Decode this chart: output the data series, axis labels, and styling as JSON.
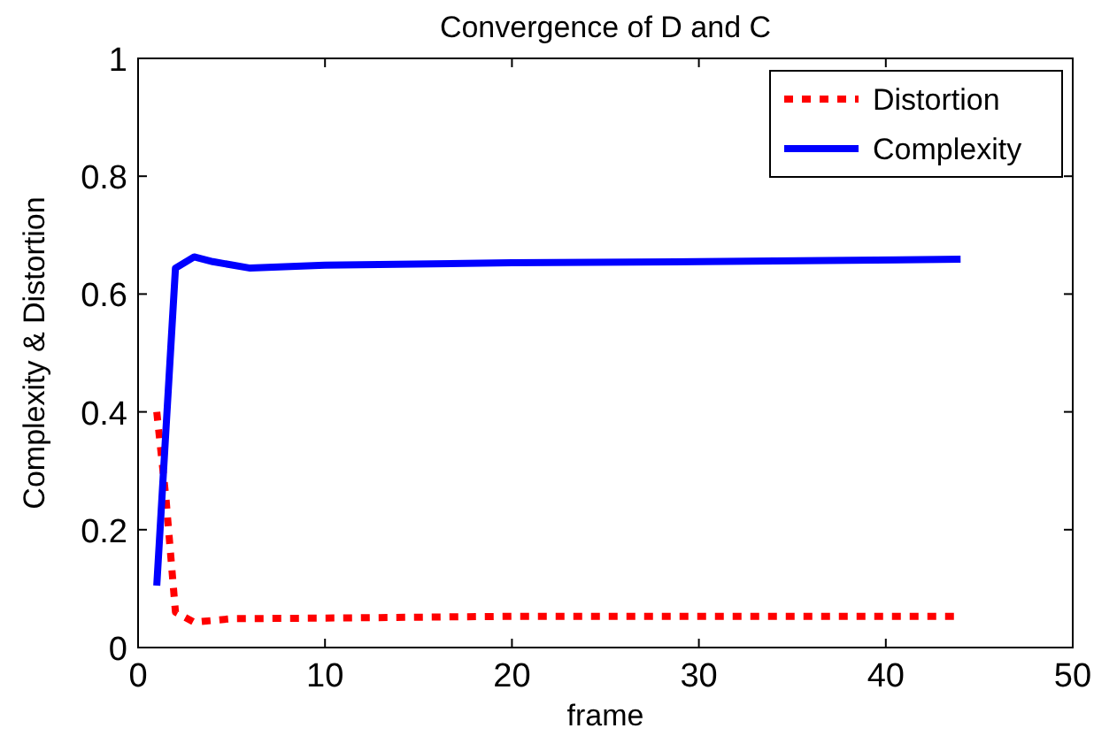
{
  "chart_data": {
    "type": "line",
    "title": "Convergence of D and C",
    "xlabel": "frame",
    "ylabel": "Complexity & Distortion",
    "xlim": [
      0,
      50
    ],
    "xticks": [
      0,
      10,
      20,
      30,
      40,
      50
    ],
    "ylim": [
      0,
      1
    ],
    "yticks": [
      0,
      0.2,
      0.4,
      0.6,
      0.8,
      1
    ],
    "grid": false,
    "legend": "top right",
    "series": [
      {
        "name": "Distortion",
        "color": "#ff0000",
        "line_style": "dotted",
        "x": [
          1,
          1.5,
          2,
          3,
          5,
          10,
          20,
          30,
          44
        ],
        "values": [
          0.4,
          0.25,
          0.06,
          0.043,
          0.049,
          0.05,
          0.053,
          0.053,
          0.053
        ]
      },
      {
        "name": "Complexity",
        "color": "#0000ff",
        "line_style": "solid",
        "x": [
          1,
          2,
          3,
          4,
          6,
          10,
          20,
          30,
          44
        ],
        "values": [
          0.105,
          0.644,
          0.663,
          0.655,
          0.644,
          0.649,
          0.653,
          0.655,
          0.659
        ]
      }
    ]
  }
}
